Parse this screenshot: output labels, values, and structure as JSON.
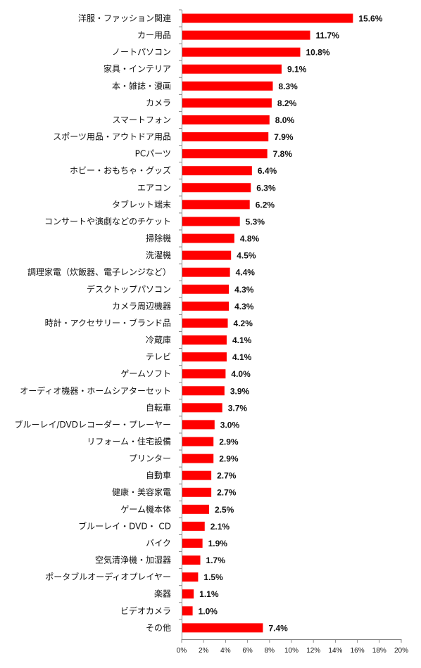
{
  "chart_data": {
    "type": "bar",
    "orientation": "horizontal",
    "categories": [
      "洋服・ファッション関連",
      "カー用品",
      "ノートパソコン",
      "家具・インテリア",
      "本・雑誌・漫画",
      "カメラ",
      "スマートフォン",
      "スポーツ用品・アウトドア用品",
      "PCパーツ",
      "ホビー・おもちゃ・グッズ",
      "エアコン",
      "タブレット端末",
      "コンサートや演劇などのチケット",
      "掃除機",
      "洗濯機",
      "調理家電（炊飯器、電子レンジなど）",
      "デスクトップパソコン",
      "カメラ周辺機器",
      "時計・アクセサリー・ブランド品",
      "冷蔵庫",
      "テレビ",
      "ゲームソフト",
      "オーディオ機器・ホームシアターセット",
      "自転車",
      "ブルーレイ/DVDレコーダー・プレーヤー",
      "リフォーム・住宅設備",
      "プリンター",
      "自動車",
      "健康・美容家電",
      "ゲーム機本体",
      "ブルーレイ・DVD・ CD",
      "バイク",
      "空気清浄機・加湿器",
      "ポータブルオーディオプレイヤー",
      "楽器",
      "ビデオカメラ",
      "その他"
    ],
    "values": [
      15.6,
      11.7,
      10.8,
      9.1,
      8.3,
      8.2,
      8.0,
      7.9,
      7.8,
      6.4,
      6.3,
      6.2,
      5.3,
      4.8,
      4.5,
      4.4,
      4.3,
      4.3,
      4.2,
      4.1,
      4.1,
      4.0,
      3.9,
      3.7,
      3.0,
      2.9,
      2.9,
      2.7,
      2.7,
      2.5,
      2.1,
      1.9,
      1.7,
      1.5,
      1.1,
      1.0,
      7.4
    ],
    "value_labels": [
      "15.6%",
      "11.7%",
      "10.8%",
      "9.1%",
      "8.3%",
      "8.2%",
      "8.0%",
      "7.9%",
      "7.8%",
      "6.4%",
      "6.3%",
      "6.2%",
      "5.3%",
      "4.8%",
      "4.5%",
      "4.4%",
      "4.3%",
      "4.3%",
      "4.2%",
      "4.1%",
      "4.1%",
      "4.0%",
      "3.9%",
      "3.7%",
      "3.0%",
      "2.9%",
      "2.9%",
      "2.7%",
      "2.7%",
      "2.5%",
      "2.1%",
      "1.9%",
      "1.7%",
      "1.5%",
      "1.1%",
      "1.0%",
      "7.4%"
    ],
    "x_ticks": [
      "0%",
      "2%",
      "4%",
      "6%",
      "8%",
      "10%",
      "12%",
      "14%",
      "16%",
      "18%",
      "20%"
    ],
    "xlim": [
      0,
      20
    ],
    "title": "",
    "xlabel": "",
    "ylabel": "",
    "grid": false,
    "legend": "none",
    "bar_color": "#ff0000",
    "axis_color": "#888888"
  }
}
